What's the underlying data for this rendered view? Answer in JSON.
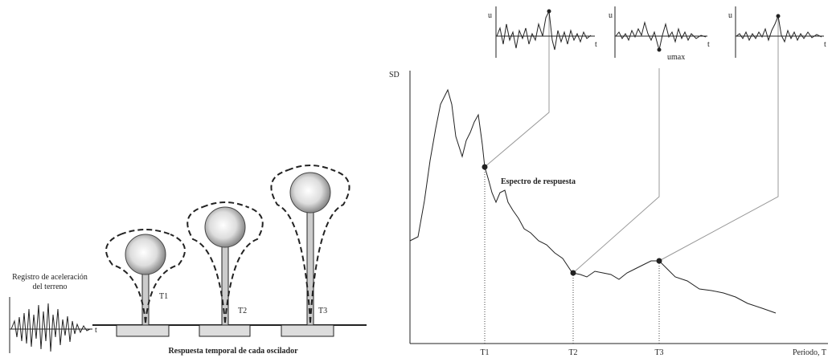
{
  "ground_record": {
    "label_lines": [
      "Registro de aceleración",
      "del terreno"
    ],
    "time_label": "t"
  },
  "oscillators": {
    "labels": [
      "T1",
      "T2",
      "T3"
    ],
    "caption": "Respuesta temporal de cada oscilador"
  },
  "spectrum": {
    "y_label": "SD",
    "curve_label": "Espectro de respuesta",
    "period_labels": [
      "T1",
      "T2",
      "T3"
    ],
    "x_label": "Periodo, T"
  },
  "responses": {
    "items": [
      {
        "y_label": "u",
        "t_label": "t"
      },
      {
        "y_label": "u",
        "t_label": "t"
      },
      {
        "y_label": "u",
        "t_label": "t"
      }
    ],
    "peak_label": "umax"
  }
}
